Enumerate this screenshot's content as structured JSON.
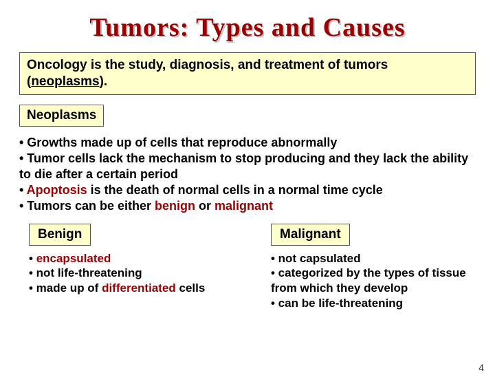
{
  "title": "Tumors: Types and Causes",
  "intro_prefix": "Oncology is the study, diagnosis, and treatment of tumors (",
  "intro_underlined": "neoplasms",
  "intro_suffix": ").",
  "section1_label": "Neoplasms",
  "bullet1": "• Growths made up of cells that reproduce abnormally",
  "bullet2": "• Tumor cells lack the mechanism to stop producing and they lack the ability to die after a certain period",
  "bullet3_pre": "• ",
  "bullet3_red": "Apoptosis",
  "bullet3_post": " is the death of normal cells in a normal time cycle",
  "bullet4_pre": "• Tumors can be either ",
  "bullet4_r1": "benign",
  "bullet4_mid": " or ",
  "bullet4_r2": "malignant",
  "benign": {
    "label": "Benign",
    "b1_pre": "• ",
    "b1_red": "encapsulated",
    "b2": "• not life-threatening",
    "b3_pre": "• made up of ",
    "b3_red": "differentiated",
    "b3_post": " cells"
  },
  "malignant": {
    "label": "Malignant",
    "b1": "• not capsulated",
    "b2": "• categorized by the types of tissue from which they develop",
    "b3": "• can be life-threatening"
  },
  "page_number": "4",
  "colors": {
    "accent": "#9a0000",
    "highlight_bg": "#ffffcc"
  }
}
